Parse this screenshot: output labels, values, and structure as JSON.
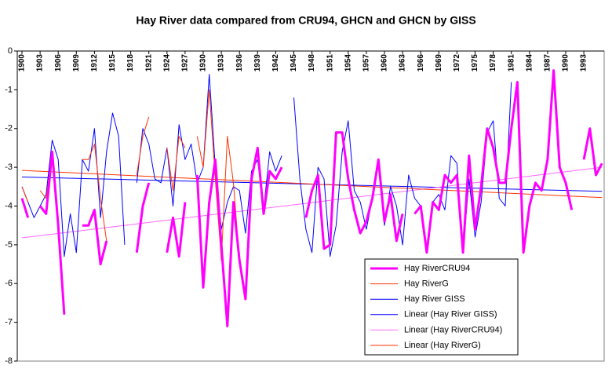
{
  "chart_data": {
    "type": "line",
    "title": "Hay River data compared from CRU94, GHCN and GHCN by GISS",
    "categories": [
      "1900",
      null,
      null,
      "1903",
      null,
      null,
      "1906",
      null,
      null,
      "1909",
      null,
      null,
      "1912",
      null,
      null,
      "1915",
      null,
      null,
      "1918",
      null,
      null,
      "1921",
      null,
      null,
      "1924",
      null,
      null,
      "1927",
      null,
      null,
      "1930",
      null,
      null,
      "1933",
      null,
      null,
      "1936",
      null,
      null,
      "1939",
      null,
      null,
      "1942",
      null,
      null,
      "1945",
      null,
      null,
      "1948",
      null,
      null,
      "1951",
      null,
      null,
      "1954",
      null,
      null,
      "1957",
      null,
      null,
      "1960",
      null,
      null,
      "1963",
      null,
      null,
      "1966",
      null,
      null,
      "1969",
      null,
      null,
      "1972",
      null,
      null,
      "1975",
      null,
      null,
      "1978",
      null,
      null,
      "1981",
      null,
      null,
      "1984",
      null,
      null,
      "1987",
      null,
      null,
      "1990",
      null,
      null,
      "1993",
      null,
      null,
      null
    ],
    "series": [
      {
        "name": "Hay RiverCRU94",
        "color": "#ff00ff",
        "width": 3,
        "values": [
          -3.8,
          -4.3,
          null,
          -4.0,
          -4.2,
          -2.6,
          -4.5,
          -6.8,
          null,
          null,
          -4.5,
          -4.5,
          -4.1,
          -5.5,
          -4.9,
          null,
          null,
          null,
          null,
          -5.2,
          -4.0,
          -3.4,
          null,
          null,
          -5.2,
          -4.3,
          -5.3,
          -3.9,
          null,
          -3.2,
          -6.1,
          -3.9,
          -2.8,
          -5.0,
          -7.1,
          -3.9,
          -5.4,
          -6.4,
          -3.3,
          -2.5,
          -4.2,
          -3.1,
          -3.3,
          -3.0,
          null,
          null,
          null,
          -4.3,
          -3.6,
          -3.2,
          -5.1,
          -5.0,
          -2.1,
          -2.1,
          -3.3,
          -4.1,
          -4.7,
          -4.4,
          -3.8,
          -2.8,
          -4.4,
          -3.7,
          -4.9,
          -4.2,
          null,
          -4.2,
          -4.0,
          -5.2,
          -3.9,
          -4.1,
          -3.2,
          -3.4,
          -3.2,
          -5.2,
          -2.7,
          -4.6,
          -3.5,
          -2.0,
          -2.5,
          -3.4,
          -3.4,
          -2.0,
          -0.8,
          -5.2,
          -4.0,
          -3.4,
          -3.6,
          -2.8,
          -0.5,
          -3.0,
          -3.4,
          -4.1,
          null,
          -2.8,
          -2.0,
          -3.2,
          -2.9
        ]
      },
      {
        "name": "Hay RiverG",
        "color": "#ff3300",
        "width": 1,
        "values": [
          -3.5,
          -3.9,
          null,
          -3.6,
          -3.8,
          -2.6,
          -4.5,
          -6.8,
          null,
          null,
          -2.8,
          -2.8,
          -2.4,
          -3.8,
          -4.9,
          null,
          null,
          null,
          null,
          -3.2,
          -2.2,
          -1.7,
          null,
          null,
          -2.5,
          -3.6,
          -2.2,
          -2.5,
          null,
          -2.2,
          -3.0,
          -1.0,
          -3.3,
          -5.4,
          -2.2,
          -3.4,
          -5.4,
          -6.4,
          -3.3,
          -2.5,
          -4.2,
          -3.1,
          -3.3,
          -3.0,
          null,
          null,
          null,
          -4.3,
          -3.6,
          -3.2,
          -5.1,
          -5.0,
          -2.1,
          -2.1,
          -3.3,
          -4.1,
          -4.7,
          -4.4,
          -3.8,
          -2.8,
          -4.4,
          -3.7,
          -4.9,
          -4.2,
          null,
          -4.2,
          -4.0,
          -5.2,
          -3.9,
          -4.1,
          -3.2,
          -3.4,
          -3.2,
          -5.2,
          -2.7,
          -4.6,
          -3.5,
          -2.0,
          -2.5,
          -3.4,
          -3.4,
          -2.0,
          -0.8,
          -5.2,
          -4.0,
          -3.4,
          -3.6,
          -2.8,
          -0.5,
          -3.0,
          -3.4,
          -4.1,
          null,
          null,
          null,
          null,
          null
        ]
      },
      {
        "name": "Hay River GISS",
        "color": "#0000ff",
        "width": 1,
        "values": [
          -3.5,
          -3.9,
          -4.3,
          -4.0,
          -3.7,
          -2.3,
          -2.8,
          -5.3,
          -4.2,
          -5.2,
          -2.8,
          -3.1,
          -2.0,
          -4.3,
          -2.6,
          -1.6,
          -2.2,
          -5.0,
          null,
          -3.4,
          -2.0,
          -2.4,
          -3.3,
          -3.4,
          -2.5,
          -4.0,
          -1.9,
          -2.8,
          -2.4,
          -3.4,
          -3.0,
          -0.6,
          -3.0,
          -4.6,
          -3.9,
          -3.5,
          -3.6,
          -4.7,
          -3.1,
          -2.8,
          -4.1,
          -2.6,
          -3.1,
          -2.7,
          null,
          -1.2,
          -3.3,
          -4.6,
          -5.2,
          -3.0,
          -3.3,
          -5.3,
          -4.5,
          -2.6,
          -1.8,
          -3.6,
          -3.9,
          -4.6,
          -3.8,
          -2.8,
          -4.5,
          -3.5,
          -4.0,
          -5.0,
          -3.2,
          -3.8,
          -4.0,
          -5.2,
          -3.9,
          -3.7,
          -4.1,
          -2.7,
          -2.9,
          -5.2,
          -3.3,
          -4.8,
          -3.9,
          -2.1,
          -1.8,
          -3.8,
          -4.0,
          -0.8,
          null,
          null,
          null,
          null,
          null,
          null,
          null,
          null,
          null,
          null,
          null,
          null,
          null,
          null,
          null
        ]
      }
    ],
    "trendlines": [
      {
        "name": "Linear (Hay River GISS)",
        "color": "#0000ff",
        "start": -3.25,
        "end": -3.62
      },
      {
        "name": "Linear (Hay RiverCRU94)",
        "color": "#ff66ff",
        "start": -4.82,
        "end": -3.0
      },
      {
        "name": "Linear (Hay RiverG)",
        "color": "#ff3300",
        "start": -3.08,
        "end": -3.78
      }
    ],
    "ylim": [
      -8,
      0
    ],
    "yticks": [
      0,
      -1,
      -2,
      -3,
      -4,
      -5,
      -6,
      -7,
      -8
    ],
    "grid": false
  }
}
